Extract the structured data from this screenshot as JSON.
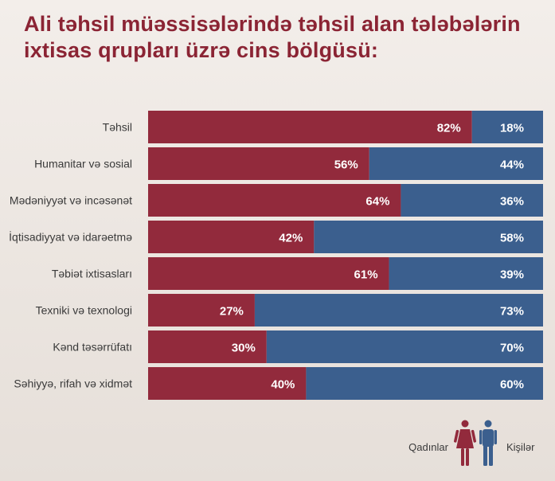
{
  "chart_data": {
    "type": "bar",
    "orientation": "horizontal",
    "stacked": true,
    "percent": true,
    "title": "Ali təhsil müəssisələrində təhsil alan tələbələrin ixtisas qrupları üzrə cins bölgüsü:",
    "title_lines": [
      "Ali təhsil müəssisələrində təhsil alan tələbələrin",
      "ixtisas qrupları üzrə cins bölgüsü:"
    ],
    "categories": [
      "Təhsil",
      "Humanitar və sosial",
      "Mədəniyyət və incəsənət",
      "İqtisadiyyat və idarəetmə",
      "Təbiət ixtisasları",
      "Texniki və texnologi",
      "Kənd təsərrüfatı",
      "Səhiyyə, rifah və xidmət"
    ],
    "series": [
      {
        "name": "Qadınlar",
        "color": "#922a3c",
        "values": [
          82,
          56,
          64,
          42,
          61,
          27,
          30,
          40
        ]
      },
      {
        "name": "Kişilər",
        "color": "#3b5f8e",
        "values": [
          18,
          44,
          36,
          58,
          39,
          73,
          70,
          60
        ]
      }
    ],
    "value_suffix": "%",
    "xlim": [
      0,
      100
    ],
    "grid": false,
    "legend_position": "bottom-right",
    "legend_icons": [
      "female-icon",
      "male-icon"
    ]
  }
}
